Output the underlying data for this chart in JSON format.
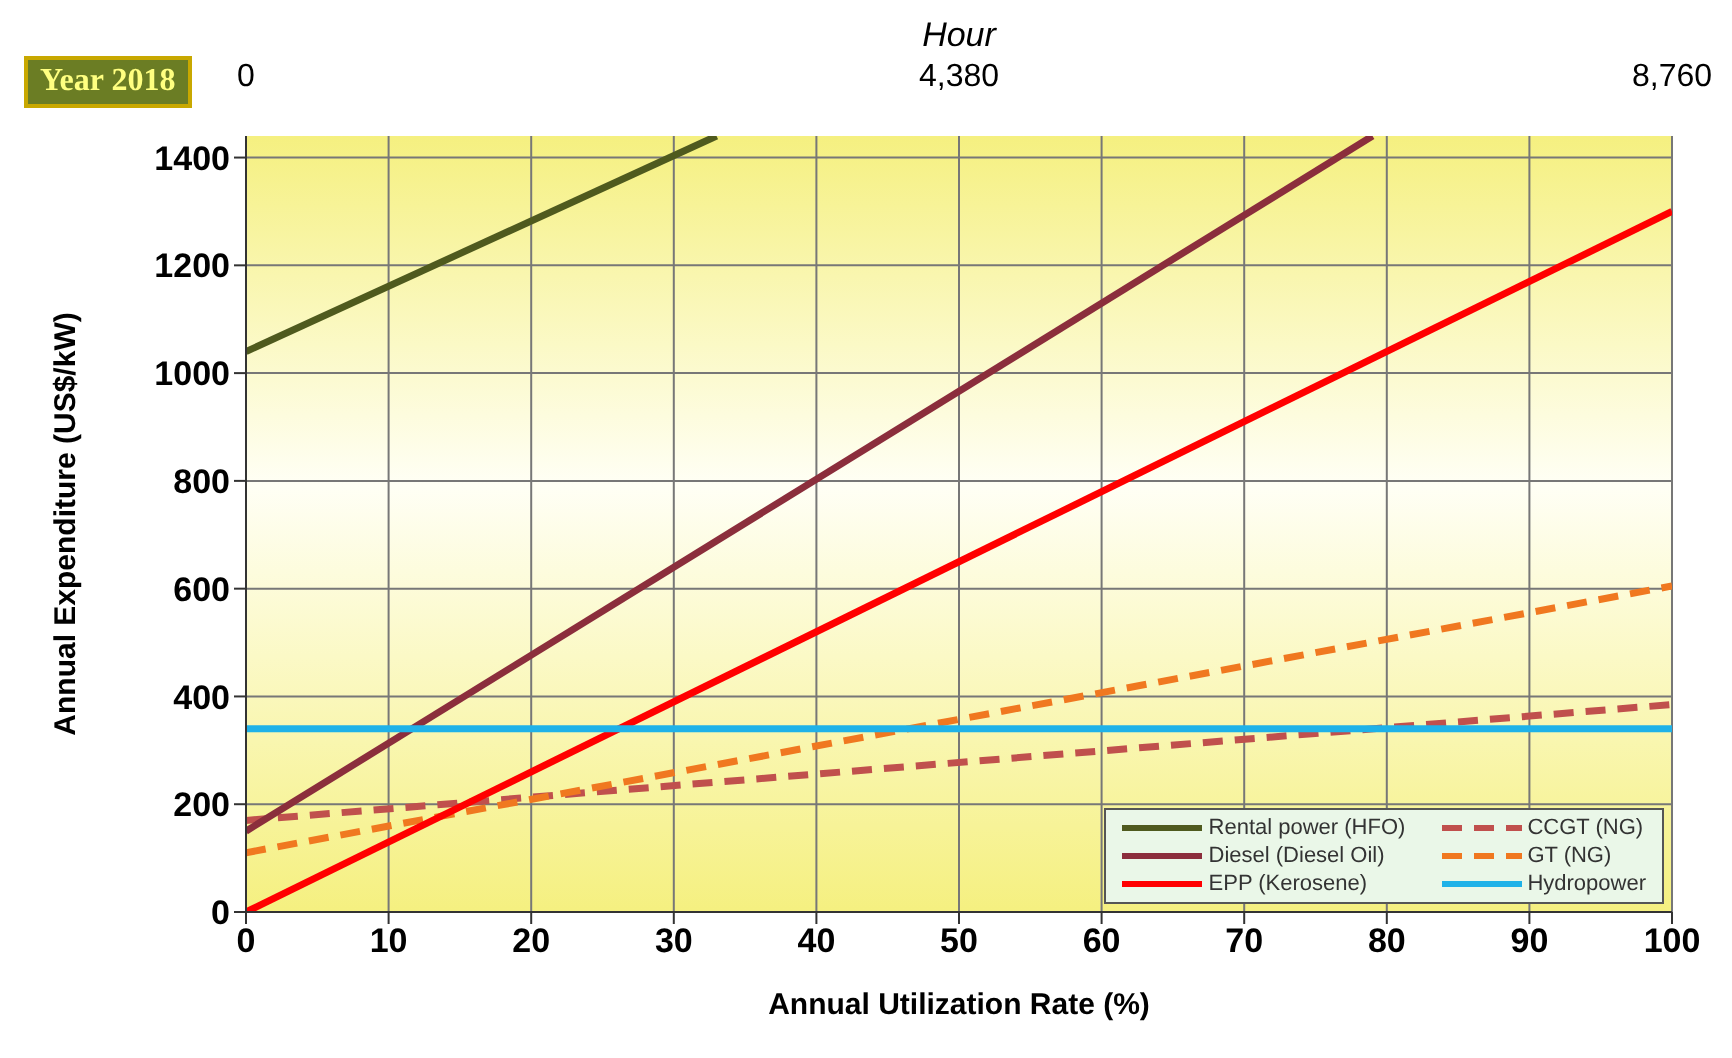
{
  "chart_data": {
    "type": "line",
    "xlabel": "Annual Utilization Rate  (%)",
    "ylabel": "Annual Expenditure  (US$/kW)",
    "x2label": "Hour",
    "annotations": [
      "Year 2018"
    ],
    "xlim": [
      0,
      100
    ],
    "xticks": [
      0,
      10,
      20,
      30,
      40,
      50,
      60,
      70,
      80,
      90,
      100
    ],
    "ylim": [
      0,
      1440
    ],
    "yticks": [
      0,
      200,
      400,
      600,
      800,
      1000,
      1200,
      1400
    ],
    "x2lim": [
      0,
      8760
    ],
    "x2ticks": [
      0,
      {
        "value": 4380,
        "label": "4,380"
      },
      {
        "value": 8760,
        "label": "8,760"
      }
    ],
    "grid": true,
    "legend": "bottom right",
    "marker": "none",
    "series": [
      {
        "name": "Rental power (HFO)",
        "color": "#4f5a1e",
        "x": [
          0,
          33
        ],
        "values": [
          1040,
          1440
        ],
        "line_style": "solid"
      },
      {
        "name": "CCGT (NG)",
        "color": "#c0504d",
        "x": [
          0,
          100
        ],
        "values": [
          170,
          385
        ],
        "line_style": "dashed"
      },
      {
        "name": "Diesel (Diesel Oil)",
        "color": "#8b2e3c",
        "x": [
          0,
          79
        ],
        "values": [
          150,
          1440
        ],
        "line_style": "solid"
      },
      {
        "name": "GT (NG)",
        "color": "#f07820",
        "x": [
          0,
          100
        ],
        "values": [
          110,
          605
        ],
        "line_style": "dashed"
      },
      {
        "name": "EPP (Kerosene)",
        "color": "#ff0000",
        "x": [
          0,
          100
        ],
        "values": [
          0,
          1300
        ],
        "line_style": "solid"
      },
      {
        "name": "Hydropower",
        "color": "#1fb2e8",
        "x": [
          0,
          100
        ],
        "values": [
          340,
          340
        ],
        "line_style": "solid"
      }
    ]
  }
}
